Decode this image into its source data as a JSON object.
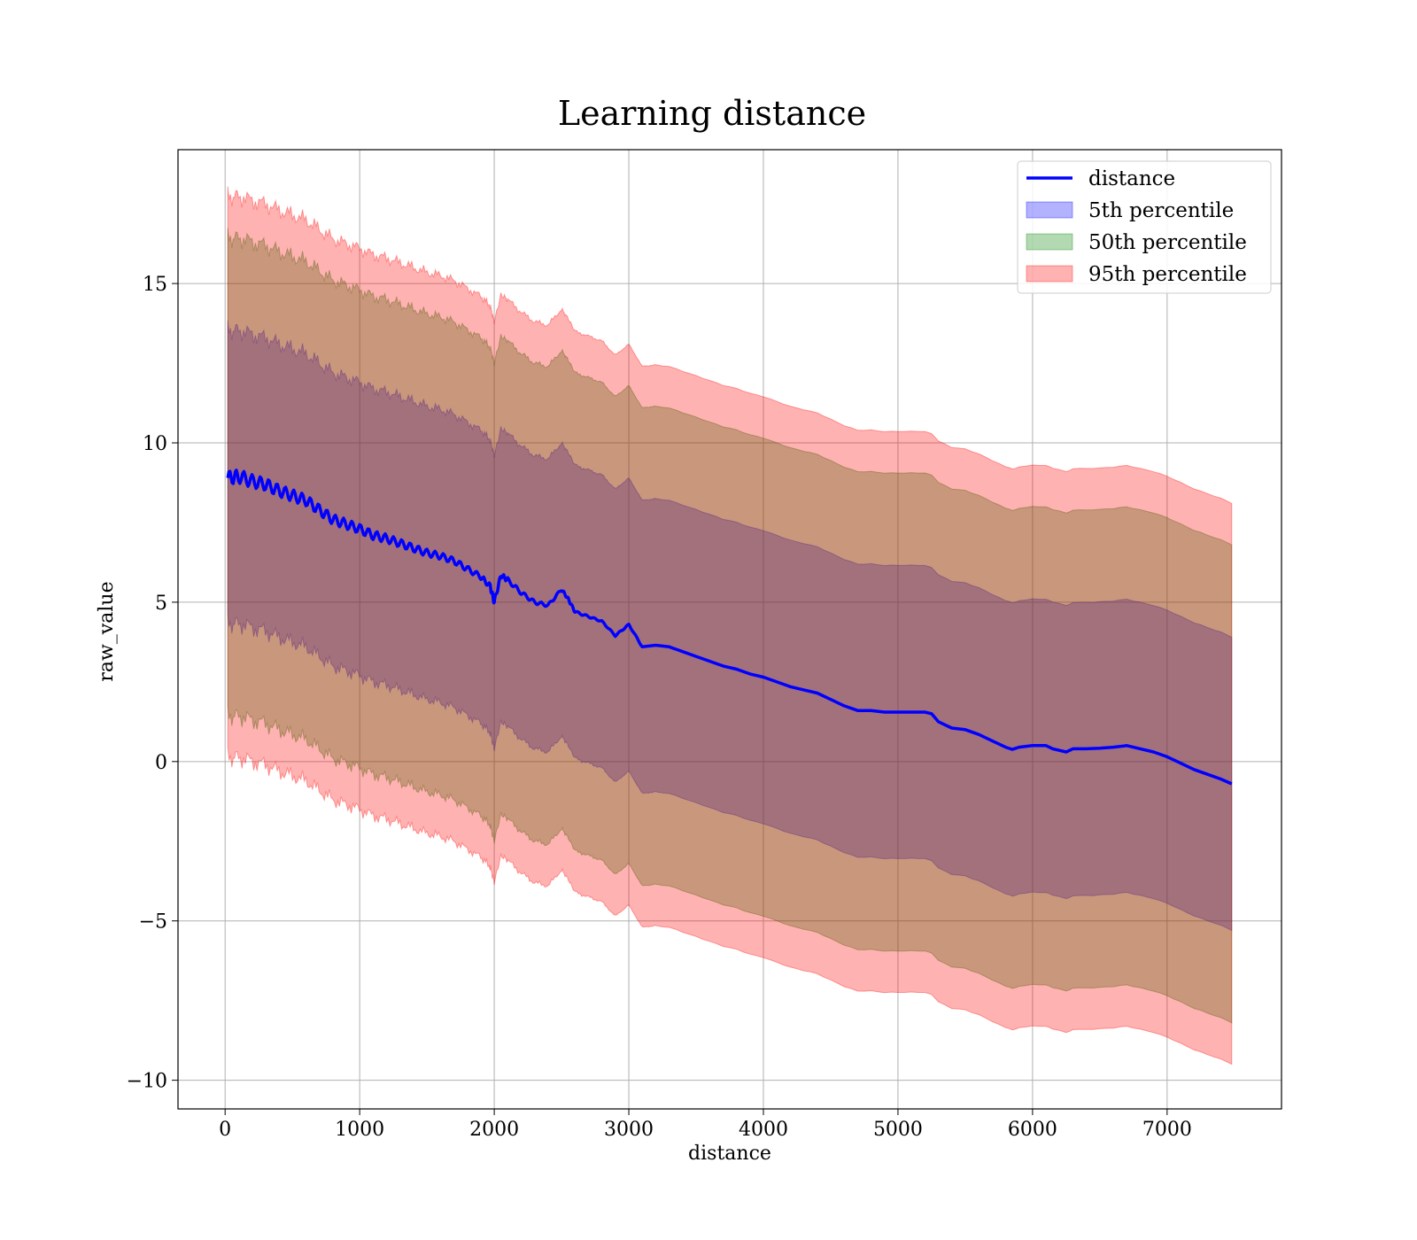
{
  "chart_data": {
    "type": "area",
    "title": "Learning distance",
    "xlabel": "distance",
    "ylabel": "raw_value",
    "xlim": [
      -350,
      7850
    ],
    "ylim": [
      -10.9,
      19.2
    ],
    "x_ticks": [
      0,
      1000,
      2000,
      3000,
      4000,
      5000,
      6000,
      7000
    ],
    "x_tick_labels": [
      "0",
      "1000",
      "2000",
      "3000",
      "4000",
      "5000",
      "6000",
      "7000"
    ],
    "y_ticks": [
      -10,
      -5,
      0,
      5,
      10,
      15
    ],
    "y_tick_labels": [
      "−10",
      "−5",
      "0",
      "5",
      "10",
      "15"
    ],
    "grid": true,
    "legend_position": "top-right",
    "colors": {
      "line": "#0000ff",
      "p5": "#0000ff",
      "p50": "#008000",
      "p95": "#ff0000"
    },
    "series": [
      {
        "name": "distance",
        "kind": "line",
        "x": [
          20,
          100,
          200,
          300,
          400,
          500,
          600,
          700,
          800,
          900,
          1000,
          1100,
          1200,
          1300,
          1400,
          1500,
          1600,
          1700,
          1800,
          1900,
          1970,
          2000,
          2050,
          2100,
          2200,
          2300,
          2400,
          2500,
          2550,
          2600,
          2700,
          2800,
          2900,
          3000,
          3100,
          3200,
          3300,
          3400,
          3500,
          3600,
          3700,
          3800,
          3900,
          4000,
          4100,
          4200,
          4300,
          4400,
          4500,
          4600,
          4700,
          4800,
          4900,
          5000,
          5100,
          5200,
          5250,
          5300,
          5400,
          5500,
          5600,
          5700,
          5800,
          5850,
          5900,
          6000,
          6100,
          6150,
          6250,
          6300,
          6400,
          6500,
          6600,
          6700,
          6800,
          6900,
          7000,
          7100,
          7200,
          7300,
          7400,
          7480
        ],
        "values": [
          8.9,
          8.95,
          8.8,
          8.7,
          8.5,
          8.35,
          8.2,
          7.9,
          7.6,
          7.45,
          7.3,
          7.1,
          7.0,
          6.85,
          6.7,
          6.55,
          6.45,
          6.3,
          6.05,
          5.8,
          5.5,
          5.0,
          5.85,
          5.7,
          5.3,
          5.0,
          4.9,
          5.4,
          5.1,
          4.7,
          4.55,
          4.4,
          3.95,
          4.3,
          3.6,
          3.65,
          3.6,
          3.45,
          3.3,
          3.15,
          3.0,
          2.9,
          2.75,
          2.65,
          2.5,
          2.35,
          2.25,
          2.15,
          1.95,
          1.75,
          1.6,
          1.6,
          1.55,
          1.55,
          1.55,
          1.55,
          1.5,
          1.25,
          1.05,
          1.0,
          0.85,
          0.65,
          0.45,
          0.38,
          0.45,
          0.5,
          0.5,
          0.4,
          0.3,
          0.4,
          0.4,
          0.42,
          0.45,
          0.5,
          0.4,
          0.3,
          0.15,
          -0.05,
          -0.25,
          -0.4,
          -0.55,
          -0.7
        ]
      },
      {
        "name": "5th percentile",
        "kind": "band",
        "offset": 4.6
      },
      {
        "name": "50th percentile",
        "kind": "band",
        "offset": 7.5
      },
      {
        "name": "95th percentile",
        "kind": "band",
        "offset": 8.8
      }
    ]
  }
}
